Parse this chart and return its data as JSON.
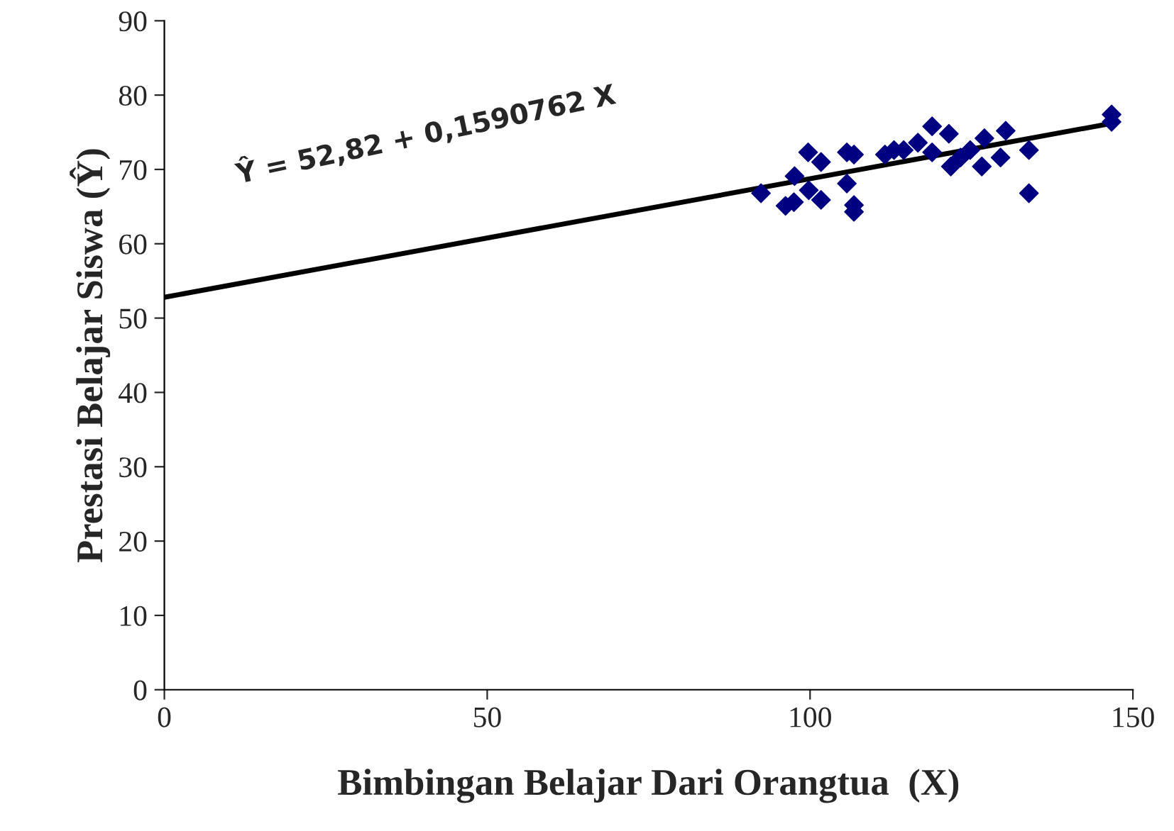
{
  "chart_data": {
    "type": "scatter",
    "xlabel": "Bimbingan Belajar Dari Orangtua  (X)",
    "ylabel": "Prestasi Belajar Siswa (Ŷ)",
    "xlim": [
      0,
      150
    ],
    "ylim": [
      0,
      90
    ],
    "xticks": [
      0,
      50,
      100,
      150
    ],
    "yticks": [
      0,
      10,
      20,
      30,
      40,
      50,
      60,
      70,
      80,
      90
    ],
    "grid": false,
    "marker": "diamond",
    "annotations": [
      "Ŷ = 52,82 + 0,1590762 X"
    ],
    "series": [
      {
        "color": "#000080",
        "x": [
          92.4,
          96.2,
          97.5,
          97.6,
          99.7,
          99.8,
          101.7,
          101.7,
          105.7,
          105.7,
          106.8,
          106.8,
          106.8,
          111.6,
          113.0,
          114.5,
          116.7,
          118.9,
          118.9,
          121.5,
          121.8,
          123.3,
          124.8,
          126.6,
          127.0,
          129.5,
          130.3,
          133.9,
          133.9,
          146.7,
          146.7
        ],
        "values": [
          66.8,
          65.1,
          65.6,
          69.1,
          72.3,
          67.2,
          71.0,
          65.9,
          72.3,
          68.1,
          72.0,
          65.2,
          64.3,
          72.0,
          72.6,
          72.6,
          73.6,
          75.8,
          72.3,
          74.8,
          70.4,
          71.6,
          72.6,
          70.4,
          74.2,
          71.6,
          75.2,
          72.6,
          66.8,
          77.4,
          76.4
        ]
      },
      {
        "type": "line",
        "color": "#000000",
        "marker": "none",
        "x": [
          0,
          146.7
        ],
        "values": [
          52.8,
          76.2
        ]
      }
    ]
  }
}
